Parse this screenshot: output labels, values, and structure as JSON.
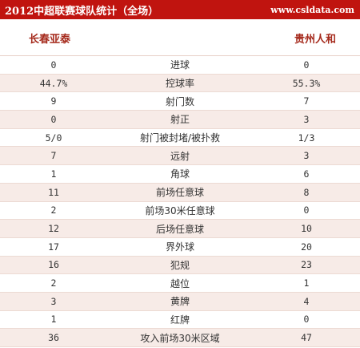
{
  "header": {
    "title": "2012中超联赛球队统计（全场）",
    "site": "www.csldata.com"
  },
  "teams": {
    "home": "长春亚泰",
    "away": "贵州人和"
  },
  "stats": [
    {
      "home": "0",
      "label": "进球",
      "away": "0"
    },
    {
      "home": "44.7%",
      "label": "控球率",
      "away": "55.3%"
    },
    {
      "home": "9",
      "label": "射门数",
      "away": "7"
    },
    {
      "home": "0",
      "label": "射正",
      "away": "3"
    },
    {
      "home": "5/0",
      "label": "射门被封堵/被扑救",
      "away": "1/3"
    },
    {
      "home": "7",
      "label": "远射",
      "away": "3"
    },
    {
      "home": "1",
      "label": "角球",
      "away": "6"
    },
    {
      "home": "11",
      "label": "前场任意球",
      "away": "8"
    },
    {
      "home": "2",
      "label": "前场30米任意球",
      "away": "0"
    },
    {
      "home": "12",
      "label": "后场任意球",
      "away": "10"
    },
    {
      "home": "17",
      "label": "界外球",
      "away": "20"
    },
    {
      "home": "16",
      "label": "犯规",
      "away": "23"
    },
    {
      "home": "2",
      "label": "越位",
      "away": "1"
    },
    {
      "home": "3",
      "label": "黄牌",
      "away": "4"
    },
    {
      "home": "1",
      "label": "红牌",
      "away": "0"
    },
    {
      "home": "36",
      "label": "攻入前场30米区域",
      "away": "47"
    }
  ],
  "colors": {
    "header_bg": "#c0140f",
    "team_text": "#a52a1c",
    "row_alt_bg": "#f7ebe7"
  }
}
